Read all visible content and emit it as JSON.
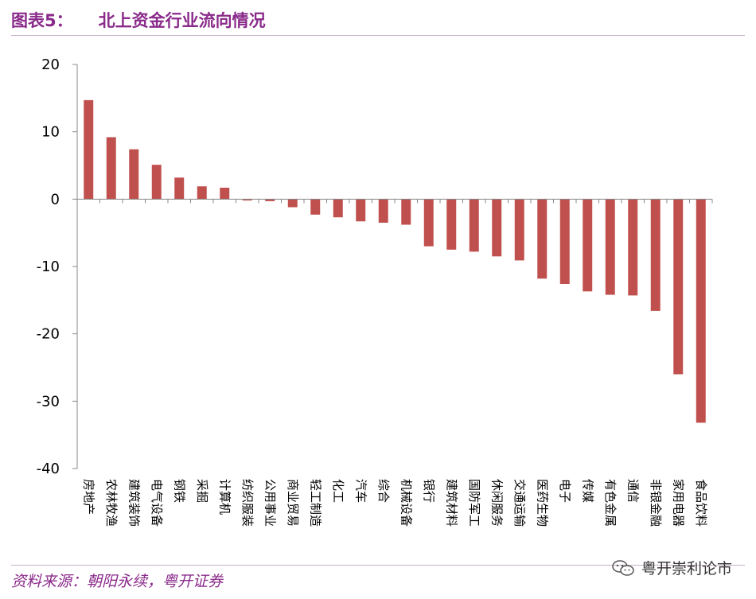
{
  "header": {
    "figure_label": "图表5：",
    "title": "北上资金行业流向情况"
  },
  "footer": {
    "source": "资料来源：朝阳永续，粤开证券",
    "watermark": "粤开崇利论市"
  },
  "icons": {
    "watermark": "wechat-icon"
  },
  "colors": {
    "bar": "#c0504d",
    "accent": "#8a2a8a"
  },
  "chart_data": {
    "type": "bar",
    "title": "北上资金行业流向情况",
    "xlabel": "",
    "ylabel": "",
    "ylim": [
      -40,
      20
    ],
    "yticks": [
      20,
      10,
      0,
      -10,
      -20,
      -30,
      -40
    ],
    "grid": false,
    "legend": "none",
    "categories": [
      "房地产",
      "农林牧渔",
      "建筑装饰",
      "电气设备",
      "钢铁",
      "采掘",
      "计算机",
      "纺织服装",
      "公用事业",
      "商业贸易",
      "轻工制造",
      "化工",
      "汽车",
      "综合",
      "机械设备",
      "银行",
      "建筑材料",
      "国防军工",
      "休闲服务",
      "交通运输",
      "医药生物",
      "电子",
      "传媒",
      "有色金属",
      "通信",
      "非银金融",
      "家用电器",
      "食品饮料"
    ],
    "values": [
      14.7,
      9.2,
      7.4,
      5.1,
      3.2,
      1.9,
      1.7,
      -0.2,
      -0.3,
      -1.2,
      -2.3,
      -2.7,
      -3.3,
      -3.5,
      -3.8,
      -7.0,
      -7.5,
      -7.8,
      -8.5,
      -9.1,
      -11.8,
      -12.6,
      -13.7,
      -14.2,
      -14.3,
      -16.6,
      -26.0,
      -33.2
    ]
  }
}
